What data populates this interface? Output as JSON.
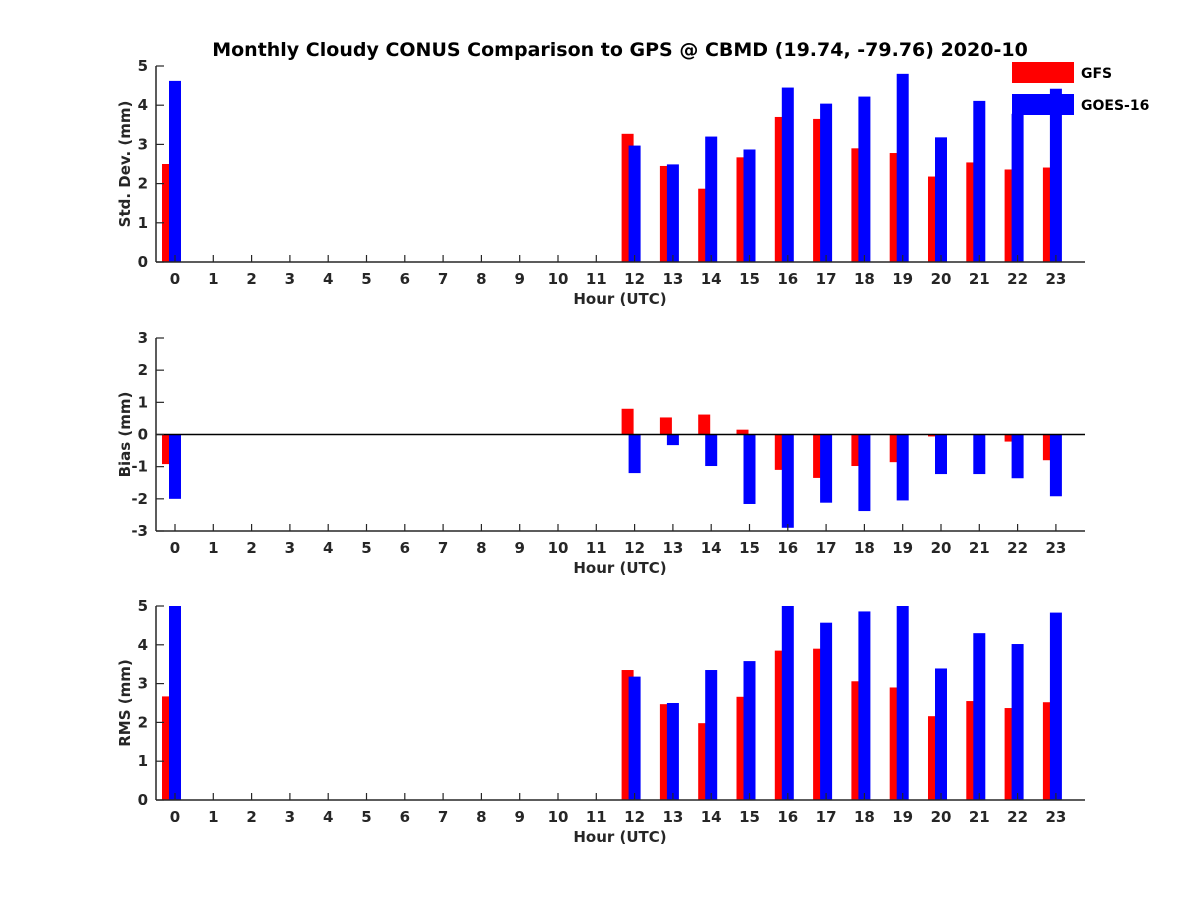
{
  "chart_data": {
    "type": "bar",
    "title": "Monthly Cloudy CONUS Comparison to GPS @ CBMD (19.74, -79.76) 2020-10",
    "colors": {
      "GFS": "#ff0000",
      "GOES-16": "#0000ff"
    },
    "legend": {
      "placement": "top-right",
      "entries": [
        "GFS",
        "GOES-16"
      ]
    },
    "panels": [
      {
        "id": "std",
        "ylabel": "Std. Dev. (mm)",
        "xlabel": "Hour (UTC)",
        "ylim": [
          0,
          5
        ],
        "yticks": [
          "0",
          "1",
          "2",
          "3",
          "4",
          "5"
        ],
        "categories": [
          "0",
          "1",
          "2",
          "3",
          "4",
          "5",
          "6",
          "7",
          "8",
          "9",
          "10",
          "11",
          "12",
          "13",
          "14",
          "15",
          "16",
          "17",
          "18",
          "19",
          "20",
          "21",
          "22",
          "23"
        ],
        "series": [
          {
            "name": "GFS",
            "values": [
              2.5,
              null,
              null,
              null,
              null,
              null,
              null,
              null,
              null,
              null,
              null,
              null,
              3.27,
              2.45,
              1.87,
              2.67,
              3.7,
              3.65,
              2.9,
              2.78,
              2.18,
              2.54,
              2.36,
              2.41
            ]
          },
          {
            "name": "GOES-16",
            "values": [
              4.62,
              null,
              null,
              null,
              null,
              null,
              null,
              null,
              null,
              null,
              null,
              null,
              2.97,
              2.49,
              3.2,
              2.87,
              4.45,
              4.04,
              4.22,
              4.8,
              3.18,
              4.11,
              3.78,
              4.42
            ]
          }
        ]
      },
      {
        "id": "bias",
        "ylabel": "Bias (mm)",
        "xlabel": "Hour (UTC)",
        "ylim": [
          -3,
          3
        ],
        "yticks": [
          "-3",
          "-2",
          "-1",
          "0",
          "1",
          "2",
          "3"
        ],
        "zero_line": true,
        "categories": [
          "0",
          "1",
          "2",
          "3",
          "4",
          "5",
          "6",
          "7",
          "8",
          "9",
          "10",
          "11",
          "12",
          "13",
          "14",
          "15",
          "16",
          "17",
          "18",
          "19",
          "20",
          "21",
          "22",
          "23"
        ],
        "series": [
          {
            "name": "GFS",
            "values": [
              -0.92,
              null,
              null,
              null,
              null,
              null,
              null,
              null,
              null,
              null,
              null,
              null,
              0.8,
              0.53,
              0.62,
              0.15,
              -1.1,
              -1.35,
              -0.98,
              -0.86,
              -0.06,
              null,
              -0.22,
              -0.8
            ]
          },
          {
            "name": "GOES-16",
            "values": [
              -2.0,
              null,
              null,
              null,
              null,
              null,
              null,
              null,
              null,
              null,
              null,
              null,
              -1.2,
              -0.33,
              -0.98,
              -2.16,
              -2.9,
              -2.12,
              -2.38,
              -2.05,
              -1.23,
              -1.23,
              -1.36,
              -1.92
            ]
          }
        ]
      },
      {
        "id": "rms",
        "ylabel": "RMS (mm)",
        "xlabel": "Hour (UTC)",
        "ylim": [
          0,
          5
        ],
        "yticks": [
          "0",
          "1",
          "2",
          "3",
          "4",
          "5"
        ],
        "categories": [
          "0",
          "1",
          "2",
          "3",
          "4",
          "5",
          "6",
          "7",
          "8",
          "9",
          "10",
          "11",
          "12",
          "13",
          "14",
          "15",
          "16",
          "17",
          "18",
          "19",
          "20",
          "21",
          "22",
          "23"
        ],
        "series": [
          {
            "name": "GFS",
            "values": [
              2.67,
              null,
              null,
              null,
              null,
              null,
              null,
              null,
              null,
              null,
              null,
              null,
              3.35,
              2.47,
              1.98,
              2.66,
              3.85,
              3.9,
              3.06,
              2.9,
              2.16,
              2.55,
              2.37,
              2.52
            ]
          },
          {
            "name": "GOES-16",
            "values": [
              5.0,
              null,
              null,
              null,
              null,
              null,
              null,
              null,
              null,
              null,
              null,
              null,
              3.18,
              2.5,
              3.35,
              3.58,
              5.0,
              4.57,
              4.86,
              5.0,
              3.39,
              4.3,
              4.02,
              4.83
            ]
          }
        ]
      }
    ]
  }
}
